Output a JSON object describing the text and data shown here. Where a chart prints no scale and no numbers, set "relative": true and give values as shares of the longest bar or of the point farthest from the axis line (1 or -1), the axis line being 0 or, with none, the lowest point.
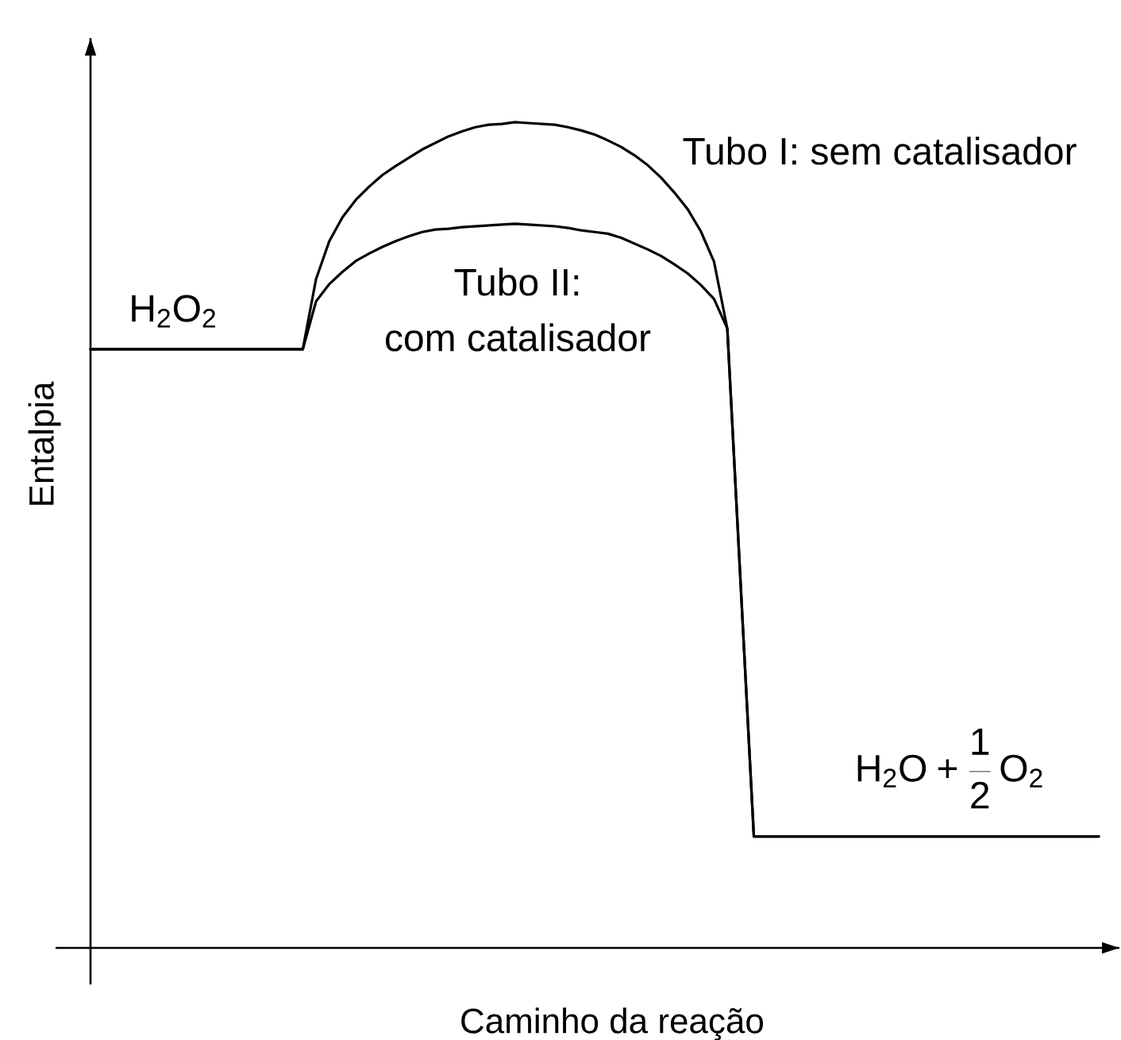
{
  "chart_data": {
    "type": "line",
    "relative": true,
    "xlabel": "Caminho da reação",
    "ylabel": "Entalpia",
    "categories": [
      null,
      null,
      null,
      null,
      null,
      null,
      null,
      null,
      null,
      null,
      null,
      null,
      null,
      null,
      null,
      null,
      null,
      null,
      null,
      null,
      null,
      null,
      null,
      null,
      null,
      null,
      null,
      null,
      null,
      null,
      null,
      null,
      null,
      null,
      null,
      null,
      null,
      null,
      null,
      null,
      null,
      null,
      null,
      null,
      null,
      null,
      null,
      null,
      null,
      null,
      null,
      null,
      null,
      null,
      null,
      null,
      null,
      null,
      null,
      null,
      null,
      null,
      null,
      null,
      null,
      null,
      null,
      null,
      null,
      null,
      null,
      null,
      null,
      null,
      null,
      null,
      null
    ],
    "series": [
      {
        "name": "Tubo I: sem catalisador",
        "color": "#000000",
        "values": [
          0.725,
          0.725,
          0.725,
          0.725,
          0.725,
          0.725,
          0.725,
          0.725,
          0.725,
          0.725,
          0.725,
          0.725,
          0.725,
          0.725,
          0.725,
          0.725,
          0.725,
          0.81,
          0.856,
          0.885,
          0.906,
          0.922,
          0.936,
          0.947,
          0.957,
          0.967,
          0.975,
          0.983,
          0.989,
          0.994,
          0.997,
          0.998,
          1.0,
          0.999,
          0.998,
          0.997,
          0.994,
          0.99,
          0.985,
          0.978,
          0.97,
          0.96,
          0.948,
          0.933,
          0.915,
          0.895,
          0.868,
          0.831,
          0.75,
          0.442,
          0.135,
          0.135,
          0.135,
          0.135,
          0.135,
          0.135,
          0.135,
          0.135,
          0.135,
          0.135,
          0.135,
          0.135,
          0.135,
          0.135,
          0.135,
          0.135,
          0.135,
          0.135,
          0.135,
          0.135,
          0.135,
          0.135,
          0.135,
          0.135,
          0.135,
          0.135,
          0.135
        ]
      },
      {
        "name": "Tubo II: com catalisador",
        "color": "#000000",
        "values": [
          0.725,
          0.725,
          0.725,
          0.725,
          0.725,
          0.725,
          0.725,
          0.725,
          0.725,
          0.725,
          0.725,
          0.725,
          0.725,
          0.725,
          0.725,
          0.725,
          0.725,
          0.783,
          0.804,
          0.819,
          0.832,
          0.841,
          0.849,
          0.856,
          0.862,
          0.867,
          0.87,
          0.871,
          0.873,
          0.874,
          0.875,
          0.876,
          0.877,
          0.876,
          0.875,
          0.874,
          0.872,
          0.869,
          0.867,
          0.865,
          0.86,
          0.853,
          0.846,
          0.838,
          0.828,
          0.817,
          0.803,
          0.786,
          0.75,
          0.442,
          0.135,
          0.135,
          0.135,
          0.135,
          0.135,
          0.135,
          0.135,
          0.135,
          0.135,
          0.135,
          0.135,
          0.135,
          0.135,
          0.135,
          0.135,
          0.135,
          0.135,
          0.135,
          0.135,
          0.135,
          0.135,
          0.135,
          0.135,
          0.135,
          0.135,
          0.135,
          0.135
        ]
      }
    ],
    "annotations": [
      "\\mathrm{H_{2}O_{2}}",
      "\\mathrm{H_{2}O}+\\frac{1}{2}\\,\\mathrm{O_{2}}"
    ]
  }
}
